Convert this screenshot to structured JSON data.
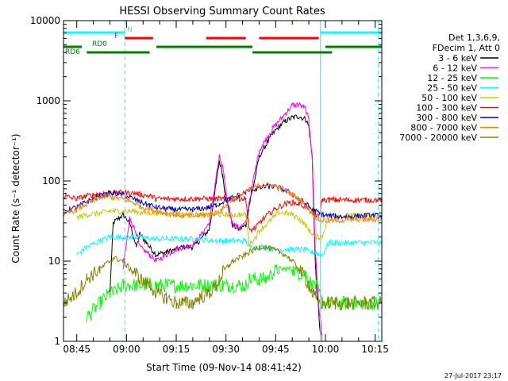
{
  "chart_data": {
    "type": "line",
    "title": "HESSI Observing Summary Count Rates",
    "xlabel": "Start Time (09-Nov-14 08:41:42)",
    "ylabel": "Count Rate (s⁻¹ detector⁻¹)",
    "x_ticks": [
      "08:45",
      "09:00",
      "09:15",
      "09:30",
      "09:45",
      "10:00",
      "10:15"
    ],
    "y_ticks": [
      "1",
      "10",
      "100",
      "1000",
      "10000"
    ],
    "y_scale": "log",
    "ylim": [
      1,
      10000
    ],
    "xlim_minutes": [
      -1,
      95
    ],
    "grid": false,
    "legend_header": [
      "Det 1,3,6,9,",
      "FDecim 1, Att 0"
    ],
    "legend_position": "right",
    "footer": "27-Jul-2017 23:17",
    "flags": [
      {
        "label": "N",
        "color": "#00ffff",
        "intervals_minutes": [
          [
            -1,
            17.5
          ],
          [
            76.5,
            95
          ]
        ]
      },
      {
        "label": "F",
        "color": "#ff0000",
        "intervals_minutes": [
          [
            17.5,
            26
          ],
          [
            42,
            54
          ],
          [
            58,
            76
          ]
        ]
      },
      {
        "label": "RD0",
        "color": "#008000",
        "intervals_minutes": [
          [
            -1,
            4.5
          ],
          [
            27,
            56
          ],
          [
            78,
            95
          ]
        ]
      },
      {
        "label": "RD6",
        "color": "#008000",
        "intervals_minutes": [
          [
            6,
            25
          ],
          [
            56,
            80
          ]
        ]
      }
    ],
    "vertical_markers_minutes": [
      {
        "minute": -1,
        "style": "solid",
        "color": "#00ffff"
      },
      {
        "minute": 17.5,
        "style": "dashed",
        "color": "#00ffff"
      },
      {
        "minute": 76.5,
        "style": "solid",
        "color": "#00ffff"
      },
      {
        "minute": 94,
        "style": "dashed",
        "color": "#00ffff"
      }
    ],
    "series_x_minutes": [
      -1,
      3,
      6,
      10,
      13,
      14,
      17,
      19,
      21,
      22,
      25,
      27,
      30,
      33,
      35,
      38,
      40,
      43,
      45,
      46,
      47,
      48,
      49,
      50,
      52,
      54,
      55,
      57,
      58,
      60,
      62,
      64,
      66,
      68,
      70,
      72,
      73,
      74,
      75,
      76,
      77,
      79,
      81,
      85,
      90,
      95
    ],
    "series": [
      {
        "name": "3 - 6 keV",
        "color": "#000000",
        "values": [
          null,
          null,
          null,
          null,
          4,
          30,
          38,
          30,
          15,
          22,
          15,
          12,
          13,
          14,
          15,
          15,
          18,
          25,
          90,
          180,
          120,
          60,
          40,
          28,
          25,
          28,
          50,
          120,
          200,
          280,
          380,
          480,
          560,
          620,
          640,
          590,
          480,
          200,
          8,
          2,
          1,
          null,
          null,
          null,
          null,
          null
        ]
      },
      {
        "name": "6 - 12 keV",
        "color": "#ff00ff",
        "values": [
          null,
          null,
          null,
          null,
          null,
          null,
          8,
          35,
          22,
          15,
          12,
          10,
          12,
          14,
          15,
          16,
          20,
          30,
          110,
          200,
          150,
          70,
          45,
          30,
          26,
          30,
          55,
          150,
          240,
          330,
          450,
          560,
          700,
          880,
          900,
          800,
          560,
          200,
          12,
          3,
          1,
          null,
          null,
          null,
          null,
          null
        ]
      },
      {
        "name": "12 - 25 keV",
        "color": "#00ff00",
        "values": [
          null,
          null,
          2,
          3,
          4,
          4,
          5,
          5,
          5,
          5,
          5,
          5,
          5,
          5,
          5,
          5,
          5,
          5,
          5,
          5,
          5,
          5,
          5,
          5,
          5,
          5,
          6,
          6,
          6,
          6,
          7,
          8,
          8,
          8,
          7,
          7,
          6,
          5,
          5,
          4,
          3,
          3,
          3,
          3,
          3,
          3
        ]
      },
      {
        "name": "25 - 50 keV",
        "color": "#00ffff",
        "values": [
          null,
          12,
          15,
          18,
          20,
          20,
          20,
          20,
          20,
          20,
          19,
          19,
          19,
          19,
          19,
          19,
          19,
          18,
          18,
          18,
          18,
          18,
          18,
          18,
          18,
          18,
          15,
          15,
          15,
          15,
          14,
          14,
          14,
          14,
          14,
          14,
          13,
          13,
          13,
          12,
          12,
          17,
          17,
          17,
          17,
          17
        ]
      },
      {
        "name": "50 - 100 keV",
        "color": "#c8c800",
        "values": [
          null,
          35,
          38,
          40,
          42,
          42,
          42,
          42,
          42,
          40,
          40,
          40,
          39,
          39,
          38,
          38,
          38,
          38,
          38,
          38,
          38,
          38,
          38,
          38,
          38,
          38,
          16,
          20,
          24,
          28,
          34,
          40,
          40,
          38,
          34,
          28,
          24,
          22,
          20,
          20,
          20,
          38,
          37,
          37,
          37,
          37
        ]
      },
      {
        "name": "100 - 300 keV",
        "color": "#ff0000",
        "values": [
          65,
          60,
          65,
          70,
          72,
          70,
          72,
          70,
          70,
          68,
          65,
          60,
          60,
          60,
          60,
          60,
          60,
          60,
          60,
          60,
          60,
          60,
          60,
          60,
          60,
          60,
          24,
          26,
          30,
          36,
          42,
          48,
          52,
          54,
          52,
          48,
          44,
          40,
          38,
          36,
          58,
          58,
          58,
          58,
          58,
          58
        ]
      },
      {
        "name": "300 - 800 keV",
        "color": "#0000b4",
        "values": [
          42,
          47,
          55,
          65,
          70,
          70,
          68,
          62,
          58,
          55,
          50,
          47,
          45,
          44,
          44,
          44,
          45,
          47,
          50,
          52,
          55,
          58,
          60,
          62,
          66,
          72,
          76,
          80,
          82,
          85,
          85,
          82,
          76,
          68,
          60,
          52,
          48,
          44,
          42,
          40,
          38,
          37,
          36,
          36,
          37,
          37
        ]
      },
      {
        "name": "800 - 7000 keV",
        "color": "#ff8000",
        "values": [
          38,
          44,
          52,
          62,
          64,
          62,
          60,
          56,
          52,
          48,
          45,
          42,
          40,
          38,
          37,
          37,
          37,
          38,
          40,
          42,
          45,
          50,
          55,
          60,
          66,
          72,
          78,
          84,
          88,
          90,
          88,
          84,
          76,
          68,
          60,
          50,
          45,
          40,
          36,
          33,
          32,
          32,
          32,
          33,
          33,
          33
        ]
      },
      {
        "name": "7000 - 20000 keV",
        "color": "#808000",
        "values": [
          3,
          4,
          6,
          8,
          10,
          11,
          10,
          8,
          7,
          6,
          5,
          4,
          3.5,
          3,
          3,
          3,
          3.5,
          4,
          5,
          6,
          7,
          8,
          9,
          10,
          11,
          12,
          13,
          14,
          15,
          15,
          14,
          13,
          12,
          10,
          8,
          6,
          5,
          4,
          3.5,
          3,
          3,
          3,
          3,
          3,
          3,
          3
        ]
      }
    ]
  }
}
